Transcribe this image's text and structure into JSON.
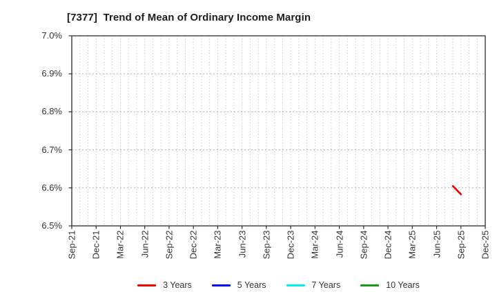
{
  "header": {
    "title": "[7377]  Trend of Mean of Ordinary Income Margin"
  },
  "chart_data": {
    "type": "line",
    "title": "[7377]  Trend of Mean of Ordinary Income Margin",
    "xlabel": "",
    "ylabel": "",
    "background_color": "#ffffff",
    "ylim": [
      6.5,
      7.0
    ],
    "y_ticks": [
      6.5,
      6.6,
      6.7,
      6.8,
      6.9,
      7.0
    ],
    "y_tick_labels": [
      "6.5%",
      "6.6%",
      "6.7%",
      "6.8%",
      "6.9%",
      "7.0%"
    ],
    "x_tick_labels": [
      "Sep-21",
      "Dec-21",
      "Mar-22",
      "Jun-22",
      "Sep-22",
      "Dec-22",
      "Mar-23",
      "Jun-23",
      "Sep-23",
      "Dec-23",
      "Mar-24",
      "Jun-24",
      "Sep-24",
      "Dec-24",
      "Mar-25",
      "Jun-25",
      "Sep-25",
      "Dec-25"
    ],
    "x_total_months": 51,
    "x_tick_every_months": 3,
    "grid": {
      "show": true,
      "color": "#b0b0b0",
      "style": "dotted",
      "vertical_every_months": 1,
      "horizontal_at_y_ticks": true
    },
    "axis_color": "#2b2b2b",
    "legend": {
      "position": "bottom-center",
      "entries": [
        "3 Years",
        "5 Years",
        "7 Years",
        "10 Years"
      ]
    },
    "series": [
      {
        "name": "3 Years",
        "color": "#ee0000",
        "points": [
          {
            "x_label": "Aug-25",
            "month_index": 47,
            "value": 6.605
          },
          {
            "x_label": "Sep-25",
            "month_index": 48,
            "value": 6.583
          }
        ]
      },
      {
        "name": "5 Years",
        "color": "#0000ff",
        "points": []
      },
      {
        "name": "7 Years",
        "color": "#00eeee",
        "points": []
      },
      {
        "name": "10 Years",
        "color": "#189818",
        "points": []
      }
    ]
  }
}
